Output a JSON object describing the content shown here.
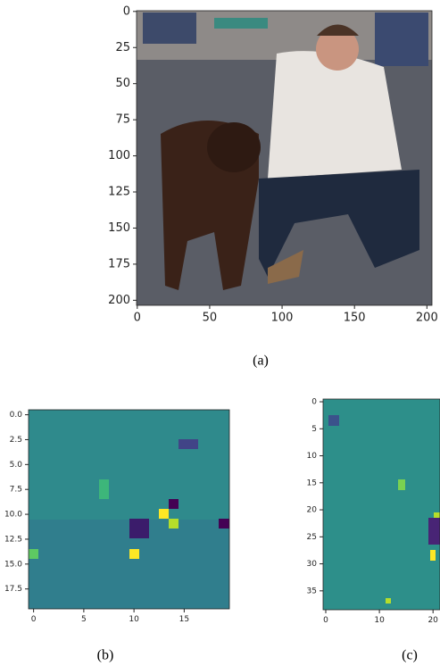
{
  "figure": {
    "panels": [
      {
        "type": "image",
        "label": "(a)",
        "xlim": [
          -0.5,
          203.5
        ],
        "ylim": [
          203.5,
          -0.5
        ],
        "xticks": [
          0,
          50,
          100,
          150,
          200
        ],
        "yticks": [
          0,
          25,
          50,
          75,
          100,
          125,
          150,
          175,
          200
        ]
      },
      {
        "type": "image",
        "label": "(b)",
        "xlim": [
          -0.5,
          19.5
        ],
        "ylim": [
          19.5,
          -0.5
        ],
        "xticks": [
          0,
          5,
          10,
          15
        ],
        "yticks": [
          {
            "value": 0,
            "label": "0.0"
          },
          {
            "value": 2.5,
            "label": "2.5"
          },
          {
            "value": 5,
            "label": "5.0"
          },
          {
            "value": 7.5,
            "label": "7.5"
          },
          {
            "value": 10,
            "label": "10.0"
          },
          {
            "value": 12.5,
            "label": "12.5"
          },
          {
            "value": 15,
            "label": "15.0"
          },
          {
            "value": 17.5,
            "label": "17.5"
          }
        ]
      },
      {
        "type": "image",
        "label": "(c)",
        "xlim": [
          -0.5,
          21.3
        ],
        "ylim": [
          38.5,
          -0.5
        ],
        "xticks": [
          0,
          10,
          20
        ],
        "yticks": [
          0,
          5,
          10,
          15,
          20,
          25,
          30,
          35
        ]
      }
    ]
  }
}
